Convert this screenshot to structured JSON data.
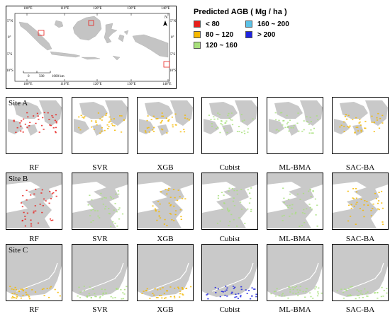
{
  "overview": {
    "lon_top": [
      "100°E",
      "110°E",
      "120°E",
      "130°E",
      "140°E"
    ],
    "lon_bottom": [
      "100°E",
      "110°E",
      "120°E",
      "130°E",
      "140°E"
    ],
    "lat_left": [
      "5°N",
      "0°",
      "5°S",
      "10°S"
    ],
    "lat_right": [
      "5°N",
      "0°",
      "5°S",
      "10°S"
    ],
    "north_letter": "N",
    "scale": {
      "ticks": [
        "0",
        "500",
        "1000 km"
      ]
    }
  },
  "legend": {
    "title": "Predicted AGB ( Mg / ha )",
    "items": [
      {
        "label": "< 80",
        "color": "#e8201c"
      },
      {
        "label": "80 ~ 120",
        "color": "#f5b800"
      },
      {
        "label": "120 ~ 160",
        "color": "#a8e07c"
      },
      {
        "label": "160 ~ 200",
        "color": "#5bc2e7"
      },
      {
        "label": "> 200",
        "color": "#1f24e0"
      }
    ]
  },
  "sites": [
    {
      "label": "Site A",
      "colors": [
        "#e8201c",
        "#f5b800",
        "#a8e07c",
        "#5bc2e7",
        "#1f24e0"
      ]
    },
    {
      "label": "Site B",
      "colors": [
        "#e8201c",
        "#f5b800",
        "#a8e07c",
        "#5bc2e7",
        "#1f24e0"
      ]
    },
    {
      "label": "Site C",
      "colors": [
        "#e8201c",
        "#f5b800",
        "#a8e07c",
        "#5bc2e7",
        "#1f24e0"
      ]
    }
  ],
  "models": [
    "RF",
    "SVR",
    "XGB",
    "Cubist",
    "ML-BMA",
    "SAC-BA"
  ]
}
